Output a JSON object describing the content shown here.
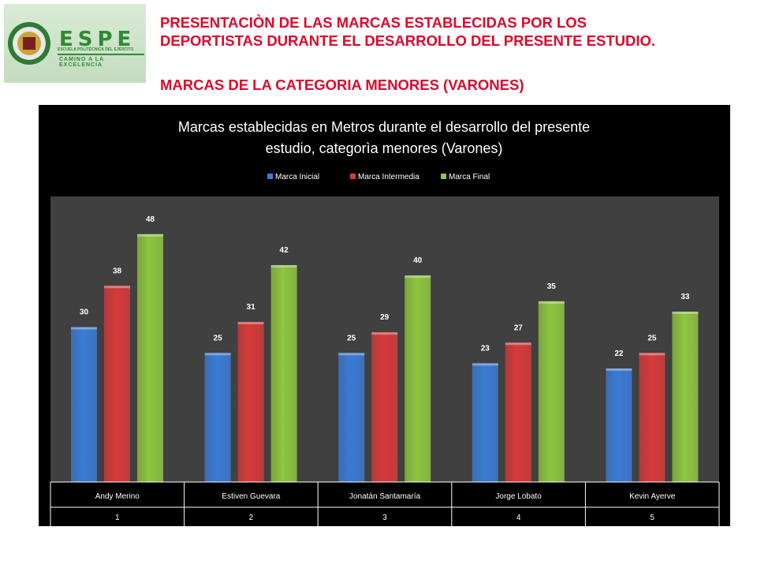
{
  "header": {
    "line1": "PRESENTACIÒN DE LAS MARCAS ESTABLECIDAS POR LOS",
    "line2": "DEPORTISTAS DURANTE EL DESARROLLO DEL PRESENTE ESTUDIO.",
    "line3": "MARCAS DE LA CATEGORIA MENORES (VARONES)"
  },
  "logo": {
    "text": "ESPE",
    "institution": "ESCUELA POLITÉCNICA DEL EJÉRCITO",
    "motto": "CAMINO A LA EXCELENCIA"
  },
  "chart_data": {
    "type": "bar",
    "title_line1": "Marcas establecidas en Metros durante el desarrollo del presente",
    "title_line2": "estudio, categorìa menores (Varones)",
    "categories": [
      "Andy Merino",
      "Estiven Guevara",
      "Jonatán Santamaría",
      "Jorge Lobato",
      "Kevin Ayerve"
    ],
    "category_numbers": [
      "1",
      "2",
      "3",
      "4",
      "5"
    ],
    "series": [
      {
        "name": "Marca Inicial",
        "values": [
          30,
          25,
          25,
          23,
          22
        ],
        "color": "#3b7bd4"
      },
      {
        "name": "Marca Intermedia",
        "values": [
          38,
          31,
          29,
          27,
          25
        ],
        "color": "#d63a3a"
      },
      {
        "name": "Marca Final",
        "values": [
          48,
          42,
          40,
          35,
          33
        ],
        "color": "#8fc540"
      }
    ],
    "ylim": [
      0,
      55
    ],
    "legend_position": "top",
    "grid": false,
    "background": "#000000",
    "plot_background": "#404040"
  }
}
